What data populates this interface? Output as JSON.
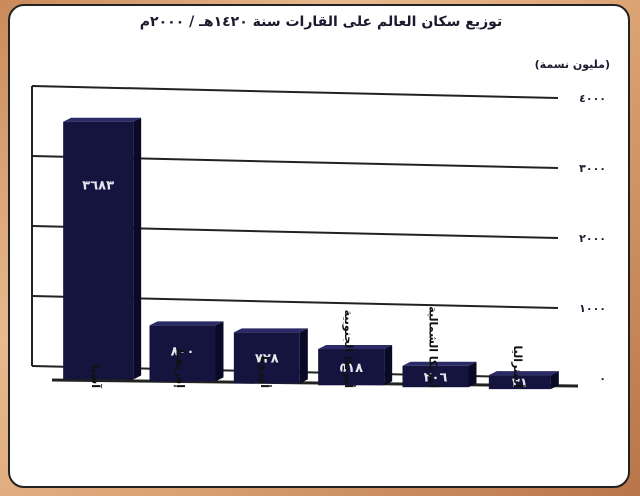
{
  "chart_data": {
    "type": "bar",
    "title": "توزيع سكان العالم على القارات سنة ١٤٢٠هـ / ٢٠٠٠م",
    "ylabel": "(مليون نسمة)",
    "ylim": [
      0,
      4000
    ],
    "y_ticks": [
      "٠",
      "١٠٠٠",
      "٢٠٠٠",
      "٣٠٠٠",
      "٤٠٠٠"
    ],
    "y_tick_values": [
      0,
      1000,
      2000,
      3000,
      4000
    ],
    "categories": [
      "آسيا",
      "إفريقيا",
      "أوروبا",
      "أمريكا الجنوبية",
      "أمريكا الشمالية",
      "أستراليا"
    ],
    "values": [
      3683,
      800,
      728,
      518,
      306,
      31
    ],
    "value_labels": [
      "٣٦٨٣",
      "٨٠٠",
      "٧٢٨",
      "٥١٨",
      "٣٠٦",
      "٣١"
    ],
    "grid": true,
    "bar_color": "#14143f"
  }
}
